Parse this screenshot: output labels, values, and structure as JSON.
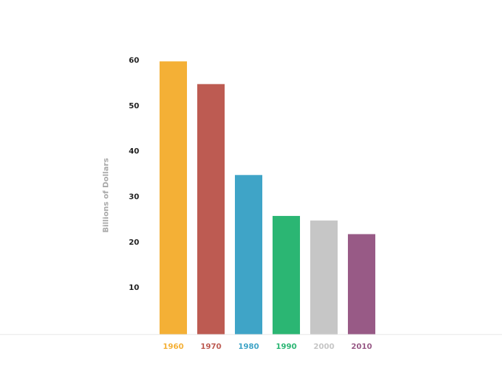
{
  "chart_data": {
    "type": "bar",
    "y_label": "Billions of Dollars",
    "categories": [
      "1960",
      "1970",
      "1980",
      "1990",
      "2000",
      "2010"
    ],
    "values": [
      60,
      55,
      35,
      26,
      25,
      22
    ],
    "colors": [
      "#f4b036",
      "#bd5b52",
      "#3fa4c7",
      "#2bb673",
      "#c6c6c6",
      "#985a86"
    ],
    "ylim": [
      0,
      60
    ],
    "yticks": [
      10,
      20,
      30,
      40,
      50,
      60
    ],
    "grid": true
  }
}
